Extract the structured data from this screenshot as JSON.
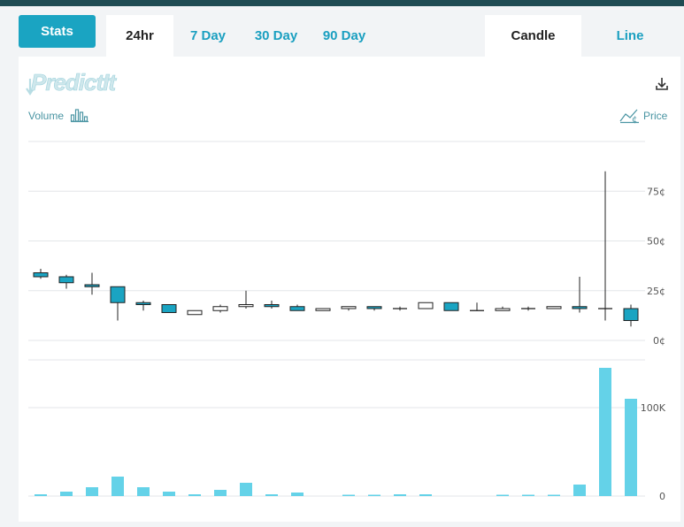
{
  "tabs": {
    "stats_label": "Stats",
    "ranges": [
      "24hr",
      "7 Day",
      "30 Day",
      "90 Day"
    ],
    "active_range": "24hr",
    "chart_types": [
      "Candle",
      "Line"
    ],
    "active_chart_type": "Candle"
  },
  "logo_text": "PredictIt",
  "toolbar": {
    "download_icon": "download-icon",
    "volume_label": "Volume",
    "volume_icon": "bar-chart-icon",
    "price_label": "Price",
    "price_icon": "line-chart-icon"
  },
  "colors": {
    "accent": "#1aa4c2",
    "candle_down": "#1aa4c2",
    "candle_up": "#ffffff",
    "volume_bar": "#64d2e8",
    "top_bar": "#1f4c53"
  },
  "chart_data": [
    {
      "type": "candlestick",
      "ylim": [
        0,
        100
      ],
      "yticks": [
        0,
        25,
        50,
        75
      ],
      "ytick_labels": [
        "0¢",
        "25¢",
        "50¢",
        "75¢"
      ],
      "grid": true,
      "candles": [
        {
          "open": 34,
          "close": 32,
          "high": 36,
          "low": 31
        },
        {
          "open": 32,
          "close": 29,
          "high": 33,
          "low": 26
        },
        {
          "open": 28,
          "close": 27,
          "high": 34,
          "low": 23
        },
        {
          "open": 27,
          "close": 19,
          "high": 27,
          "low": 10
        },
        {
          "open": 19,
          "close": 18,
          "high": 20,
          "low": 15
        },
        {
          "open": 18,
          "close": 14,
          "high": 18,
          "low": 14
        },
        {
          "open": 13,
          "close": 15,
          "high": 15,
          "low": 13
        },
        {
          "open": 15,
          "close": 17,
          "high": 18,
          "low": 14
        },
        {
          "open": 17,
          "close": 18,
          "high": 25,
          "low": 16
        },
        {
          "open": 18,
          "close": 17,
          "high": 20,
          "low": 16
        },
        {
          "open": 17,
          "close": 15,
          "high": 18,
          "low": 15
        },
        {
          "open": 15,
          "close": 16,
          "high": 16,
          "low": 15
        },
        {
          "open": 16,
          "close": 17,
          "high": 17,
          "low": 15
        },
        {
          "open": 17,
          "close": 16,
          "high": 17,
          "low": 15
        },
        {
          "open": 16,
          "close": 16,
          "high": 17,
          "low": 15
        },
        {
          "open": 16,
          "close": 19,
          "high": 19,
          "low": 16
        },
        {
          "open": 19,
          "close": 15,
          "high": 19,
          "low": 15
        },
        {
          "open": 15,
          "close": 15,
          "high": 19,
          "low": 15
        },
        {
          "open": 15,
          "close": 16,
          "high": 17,
          "low": 15
        },
        {
          "open": 16,
          "close": 16,
          "high": 17,
          "low": 15
        },
        {
          "open": 16,
          "close": 17,
          "high": 17,
          "low": 16
        },
        {
          "open": 17,
          "close": 16,
          "high": 32,
          "low": 14
        },
        {
          "open": 16,
          "close": 16,
          "high": 85,
          "low": 10
        },
        {
          "open": 16,
          "close": 10,
          "high": 18,
          "low": 7
        }
      ]
    },
    {
      "type": "bar",
      "ylim": [
        0,
        150000
      ],
      "yticks": [
        0,
        100000
      ],
      "ytick_labels": [
        "0",
        "100K"
      ],
      "grid": true,
      "values": [
        2000,
        5000,
        10000,
        22000,
        10000,
        5000,
        2000,
        7000,
        15000,
        2000,
        4000,
        0,
        1000,
        1000,
        2000,
        2000,
        0,
        0,
        1000,
        1000,
        1000,
        13000,
        145000,
        110000
      ]
    }
  ]
}
